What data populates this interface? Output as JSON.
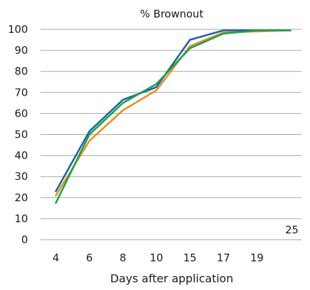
{
  "chart_data": {
    "type": "line",
    "title": "% Brownout",
    "xlabel": "Days after application",
    "ylabel": "",
    "categories": [
      "4",
      "6",
      "8",
      "10",
      "15",
      "17",
      "19",
      "25"
    ],
    "ylim": [
      0,
      100
    ],
    "yticks": [
      0,
      10,
      20,
      30,
      40,
      50,
      60,
      70,
      80,
      90,
      100
    ],
    "grid": true,
    "legend": "none",
    "series": [
      {
        "color": "#1f5fa8",
        "values": [
          23,
          51.5,
          66.5,
          72.5,
          95,
          99.5,
          99.5,
          99.5
        ]
      },
      {
        "color": "#f08a2c",
        "values": [
          21,
          47,
          61.5,
          71,
          92,
          98.5,
          99,
          99.5
        ]
      },
      {
        "color": "#1aa34a",
        "values": [
          17.5,
          50,
          65,
          74,
          91,
          98,
          99.5,
          99.5
        ]
      }
    ]
  }
}
